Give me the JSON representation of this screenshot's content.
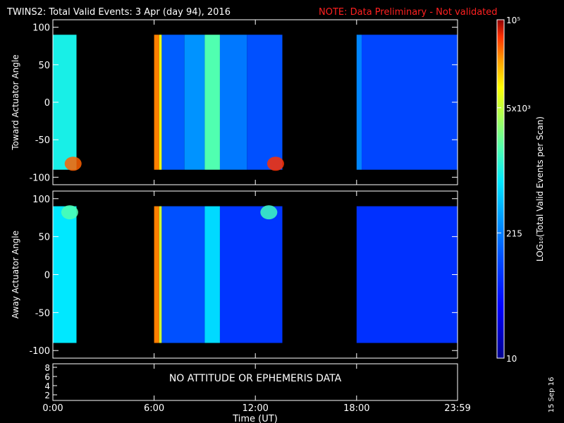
{
  "header": {
    "title": "TWINS2: Total Valid Events:  3 Apr (day  94), 2016",
    "note": "NOTE: Data Preliminary - Not validated"
  },
  "chart_data": [
    {
      "type": "heatmap",
      "name": "toward",
      "ylabel": "Toward Actuator Angle",
      "ylim": [
        -110,
        110
      ],
      "yticks": [
        "100",
        "50",
        "0",
        "-50",
        "-100"
      ],
      "yticks_values": [
        100,
        50,
        0,
        -50,
        -100
      ],
      "angle_range": [
        -90,
        90
      ],
      "data_segments_hours": [
        [
          0.0,
          1.4
        ],
        [
          6.0,
          13.6
        ],
        [
          18.0,
          23.98
        ]
      ],
      "columns": [
        {
          "t0": 0.0,
          "t1": 1.4,
          "level": 0.55
        },
        {
          "t0": 6.0,
          "t1": 6.3,
          "level": 0.9
        },
        {
          "t0": 6.3,
          "t1": 6.45,
          "level": 0.78
        },
        {
          "t0": 6.45,
          "t1": 7.8,
          "level": 0.32
        },
        {
          "t0": 7.8,
          "t1": 9.0,
          "level": 0.4
        },
        {
          "t0": 9.0,
          "t1": 9.9,
          "level": 0.62
        },
        {
          "t0": 9.9,
          "t1": 11.5,
          "level": 0.36
        },
        {
          "t0": 11.5,
          "t1": 13.6,
          "level": 0.3
        },
        {
          "t0": 18.0,
          "t1": 18.3,
          "level": 0.38
        },
        {
          "t0": 18.3,
          "t1": 23.98,
          "level": 0.28
        }
      ],
      "hotspots": [
        {
          "t": 1.2,
          "angle": -82,
          "level": 0.92
        },
        {
          "t": 13.2,
          "angle": -82,
          "level": 0.95
        }
      ]
    },
    {
      "type": "heatmap",
      "name": "away",
      "ylabel": "Away Actuator Angle",
      "ylim": [
        -110,
        110
      ],
      "yticks": [
        "100",
        "50",
        "0",
        "-50",
        "-100"
      ],
      "yticks_values": [
        100,
        50,
        0,
        -50,
        -100
      ],
      "angle_range": [
        -90,
        90
      ],
      "data_segments_hours": [
        [
          0.0,
          1.4
        ],
        [
          6.0,
          13.6
        ],
        [
          18.0,
          23.98
        ]
      ],
      "columns": [
        {
          "t0": 0.0,
          "t1": 1.4,
          "level": 0.52
        },
        {
          "t0": 6.0,
          "t1": 6.3,
          "level": 0.9
        },
        {
          "t0": 6.3,
          "t1": 6.45,
          "level": 0.75
        },
        {
          "t0": 6.45,
          "t1": 9.0,
          "level": 0.3
        },
        {
          "t0": 9.0,
          "t1": 9.9,
          "level": 0.5
        },
        {
          "t0": 9.9,
          "t1": 13.6,
          "level": 0.25
        },
        {
          "t0": 18.0,
          "t1": 23.98,
          "level": 0.24
        }
      ],
      "hotspots": [
        {
          "t": 1.0,
          "angle": 82,
          "level": 0.62
        },
        {
          "t": 12.8,
          "angle": 82,
          "level": 0.6
        }
      ]
    }
  ],
  "attitude_panel": {
    "message": "NO ATTITUDE OR EPHEMERIS DATA",
    "yticks": [
      "8",
      "6",
      "4",
      "2"
    ]
  },
  "x_axis": {
    "label": "Time (UT)",
    "xlim_hours": [
      0,
      23.983
    ],
    "ticks": [
      "0:00",
      "6:00",
      "12:00",
      "18:00",
      "23:59"
    ],
    "tick_values_hours": [
      0,
      6,
      12,
      18,
      23.983
    ]
  },
  "colorbar": {
    "label": "LOG₁₀(Total Valid Events per Scan)",
    "ticks": [
      {
        "text": "10⁵",
        "level": 1.0
      },
      {
        "text": "5x10³",
        "level": 0.74
      },
      {
        "text": "215",
        "level": 0.37
      },
      {
        "text": "10",
        "level": 0.0
      }
    ]
  },
  "footer": {
    "date_stamp": "15 Sep 16"
  }
}
